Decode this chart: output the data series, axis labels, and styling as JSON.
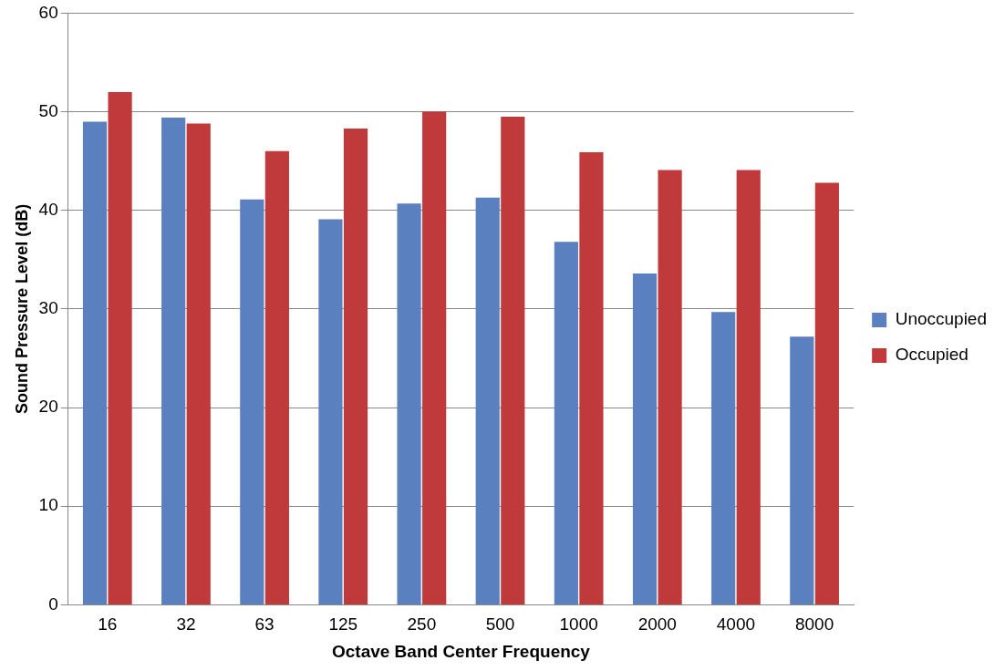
{
  "chart_data": {
    "type": "bar",
    "xlabel": "Octave Band Center Frequency",
    "ylabel": "Sound Pressure Level (dB)",
    "categories": [
      "16",
      "32",
      "63",
      "125",
      "250",
      "500",
      "1000",
      "2000",
      "4000",
      "8000"
    ],
    "series": [
      {
        "name": "Unoccupied",
        "color": "#5b80c0",
        "values": [
          49.0,
          49.4,
          41.1,
          39.1,
          40.7,
          41.3,
          36.8,
          33.6,
          29.7,
          27.2
        ]
      },
      {
        "name": "Occupied",
        "color": "#c0393b",
        "values": [
          52.0,
          48.8,
          46.0,
          48.3,
          50.0,
          49.5,
          45.9,
          44.1,
          44.1,
          42.8
        ]
      }
    ],
    "ylim": [
      0,
      60
    ],
    "yticks": [
      0,
      10,
      20,
      30,
      40,
      50,
      60
    ],
    "grid": "y",
    "legend": "right"
  }
}
